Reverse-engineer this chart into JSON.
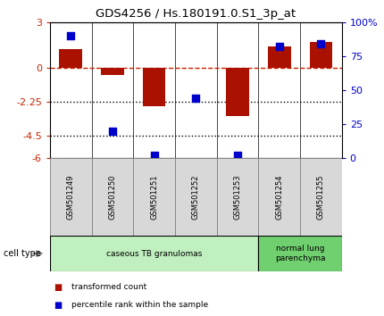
{
  "title": "GDS4256 / Hs.180191.0.S1_3p_at",
  "samples": [
    "GSM501249",
    "GSM501250",
    "GSM501251",
    "GSM501252",
    "GSM501253",
    "GSM501254",
    "GSM501255"
  ],
  "transformed_count": [
    1.2,
    -0.5,
    -2.6,
    -0.05,
    -3.2,
    1.4,
    1.7
  ],
  "percentile_rank": [
    90,
    20,
    2,
    44,
    2,
    82,
    84
  ],
  "ylim_left": [
    -6,
    3
  ],
  "ylim_right": [
    0,
    100
  ],
  "yticks_left": [
    -6,
    -4.5,
    -2.25,
    0,
    3
  ],
  "ytick_labels_left": [
    "-6",
    "-4.5",
    "-2.25",
    "0",
    "3"
  ],
  "yticks_right": [
    0,
    25,
    50,
    75,
    100
  ],
  "ytick_labels_right": [
    "0",
    "25",
    "50",
    "75",
    "100%"
  ],
  "hlines": [
    0,
    -2.25,
    -4.5
  ],
  "hline_styles": [
    "dashed",
    "dotted",
    "dotted"
  ],
  "hline_colors": [
    "#cc2200",
    "#000000",
    "#000000"
  ],
  "bar_color": "#aa1100",
  "dot_color": "#0000cc",
  "bar_width": 0.55,
  "dot_size": 35,
  "cell_type_groups": [
    {
      "label": "caseous TB granulomas",
      "samples": [
        0,
        1,
        2,
        3,
        4
      ],
      "color": "#c0f0c0"
    },
    {
      "label": "normal lung\nparenchyma",
      "samples": [
        5,
        6
      ],
      "color": "#70d070"
    }
  ],
  "cell_type_label": "cell type",
  "legend_bar_label": "transformed count",
  "legend_dot_label": "percentile rank within the sample",
  "background_color": "#ffffff",
  "plot_bg_color": "#ffffff",
  "left_axis_color": "#cc2200",
  "right_axis_color": "#0000cc",
  "sample_box_color": "#d8d8d8",
  "sample_box_edge": "#888888"
}
